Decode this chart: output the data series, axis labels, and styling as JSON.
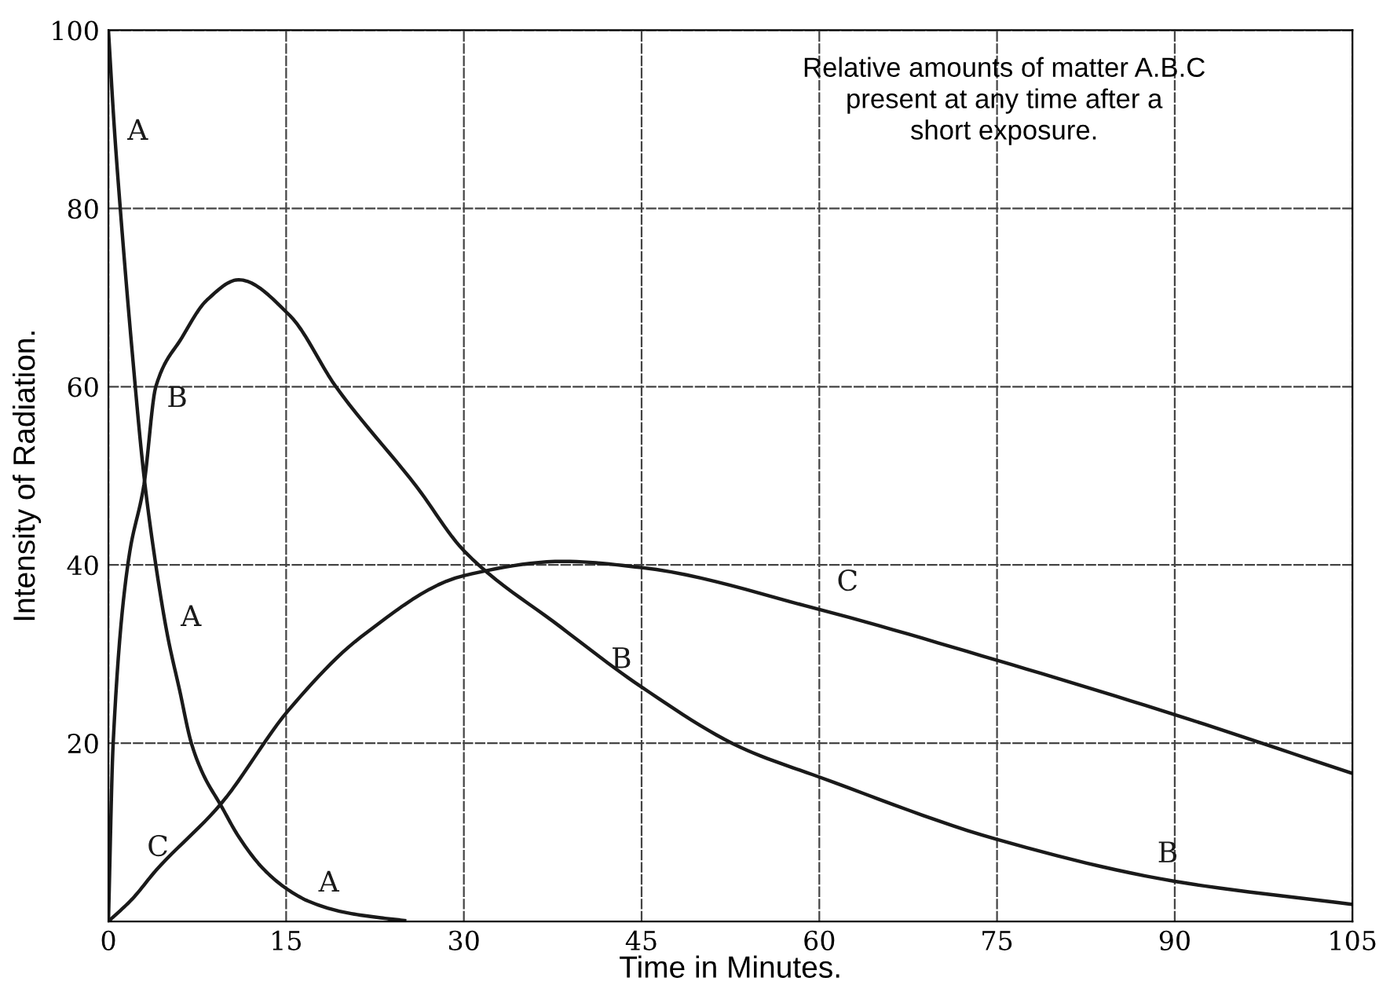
{
  "chart_data": {
    "type": "line",
    "xlabel": "Time in Minutes.",
    "ylabel": "Intensity of Radiation.",
    "xlim": [
      0,
      105
    ],
    "ylim": [
      0,
      100
    ],
    "xticks": [
      0,
      15,
      30,
      45,
      60,
      75,
      90,
      105
    ],
    "yticks": [
      {
        "value": 0,
        "label": null
      },
      20,
      40,
      60,
      80,
      100
    ],
    "grid": true,
    "legend": false,
    "marker": "none",
    "line_style": "solid",
    "series": [
      {
        "name": "A",
        "color": "#1a1a1a",
        "x": [
          0,
          0.5,
          1,
          2,
          3,
          4,
          5,
          6,
          7,
          8,
          9.5,
          11,
          13,
          15,
          17,
          20,
          23,
          25
        ],
        "values": [
          100,
          89,
          80,
          64,
          50,
          40,
          32,
          26,
          20,
          16.5,
          13,
          9.5,
          6,
          3.7,
          2.2,
          1,
          0.4,
          0.1
        ]
      },
      {
        "name": "B",
        "color": "#1a1a1a",
        "x": [
          0,
          0.4,
          1.7,
          3,
          4,
          6.2,
          8.3,
          11,
          15.3,
          19.2,
          26,
          30,
          38.2,
          45,
          53.4,
          60,
          75,
          90,
          105
        ],
        "values": [
          0,
          20,
          40.6,
          49,
          60,
          65.5,
          69.7,
          72,
          68,
          60,
          48.8,
          41.6,
          33,
          26.3,
          19.5,
          16.2,
          9.2,
          4.5,
          1.9
        ]
      },
      {
        "name": "C",
        "color": "#1a1a1a",
        "x": [
          0,
          2,
          4,
          9.5,
          15.2,
          21.3,
          30,
          38.4,
          45,
          60,
          75,
          90,
          105
        ],
        "values": [
          0,
          2.5,
          5.7,
          13.2,
          23.7,
          31.9,
          38.8,
          40.4,
          39.7,
          35,
          29.3,
          23.2,
          16.6
        ]
      }
    ],
    "annotations": [
      "Relative amounts of matter A.B.C\npresent at any time after a\nshort exposure."
    ]
  }
}
